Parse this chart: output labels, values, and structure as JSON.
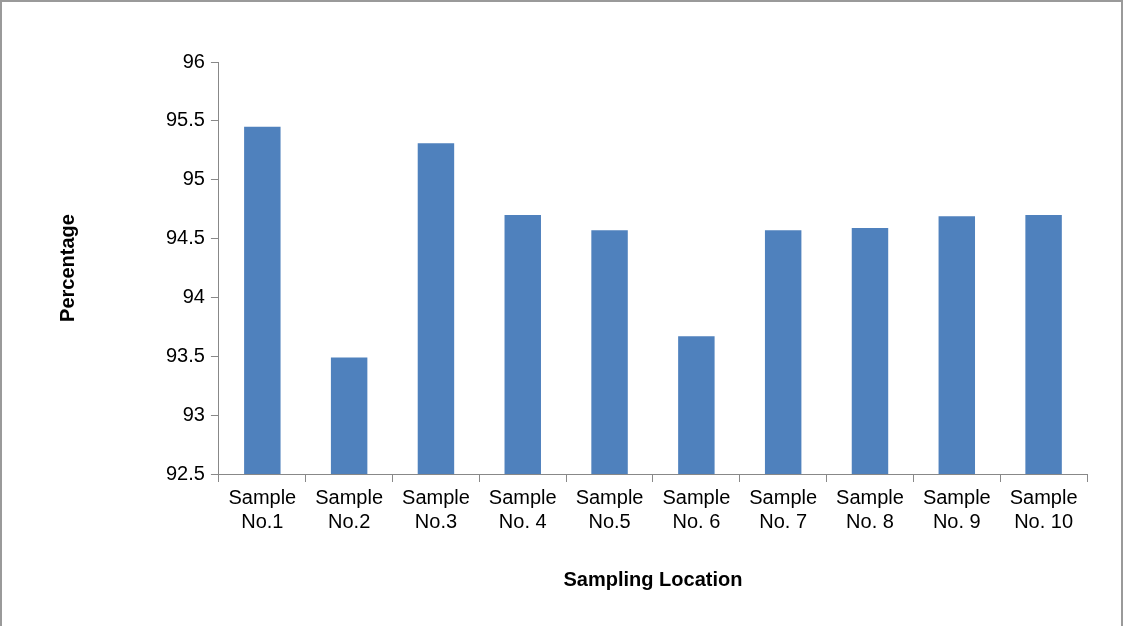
{
  "chart_data": {
    "type": "bar",
    "xlabel": "Sampling Location",
    "ylabel": "Percentage",
    "categories": [
      "Sample No.1",
      "Sample No.2",
      "Sample No.3",
      "Sample No. 4",
      "Sample No.5",
      "Sample No. 6",
      "Sample No. 7",
      "Sample No. 8",
      "Sample No. 9",
      "Sample No. 10"
    ],
    "values": [
      95.45,
      93.49,
      95.31,
      94.7,
      94.57,
      93.67,
      94.57,
      94.59,
      94.69,
      94.7
    ],
    "color": "#4f81bd",
    "ylim": [
      92.5,
      96
    ],
    "yticks": [
      92.5,
      93,
      93.5,
      94,
      94.5,
      95,
      95.5,
      96
    ],
    "grid": false,
    "legend": false
  }
}
